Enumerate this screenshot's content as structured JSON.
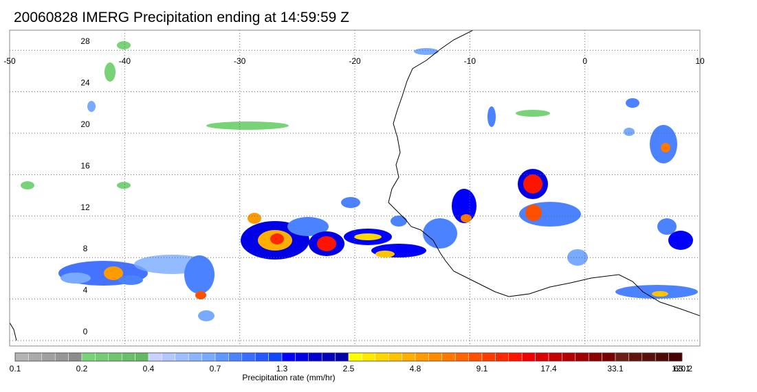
{
  "title": "20060828 IMERG Precipitation ending at 14:59:59 Z",
  "map": {
    "lon_ticks": [
      "-50",
      "-40",
      "-30",
      "-20",
      "-10",
      "0",
      "10"
    ],
    "lat_ticks": [
      "0",
      "4",
      "8",
      "12",
      "16",
      "20",
      "24",
      "28"
    ]
  },
  "colorbar": {
    "label": "Precipitation rate (mm/hr)",
    "tick_labels": [
      "0.1",
      "0.2",
      "0.4",
      "0.7",
      "1.3",
      "2.5",
      "4.8",
      "9.1",
      "17.4",
      "33.1",
      "63.1",
      "120.2"
    ],
    "colors": [
      "#b4b4b4",
      "#aaaaaa",
      "#a0a0a0",
      "#969696",
      "#8c8c8c",
      "#78d278",
      "#74cc74",
      "#6fc66f",
      "#6ac06a",
      "#64ba64",
      "#c8d2ff",
      "#b4c8ff",
      "#a0beff",
      "#8cb4ff",
      "#78aaff",
      "#5f96ff",
      "#4b82ff",
      "#376eff",
      "#235aff",
      "#0f46ff",
      "#0000ff",
      "#0000e6",
      "#0000d2",
      "#0000be",
      "#0000aa",
      "#ffff00",
      "#ffeb00",
      "#ffd700",
      "#ffc300",
      "#ffaf00",
      "#ff9b00",
      "#ff8c00",
      "#ff7800",
      "#ff6400",
      "#ff5000",
      "#ff3c00",
      "#ff2800",
      "#ff1400",
      "#f00000",
      "#dc0000",
      "#c80000",
      "#b40000",
      "#a00000",
      "#8c0000",
      "#780000",
      "#6e1e14",
      "#64140f",
      "#5a0f0a",
      "#500a05",
      "#460000"
    ]
  }
}
